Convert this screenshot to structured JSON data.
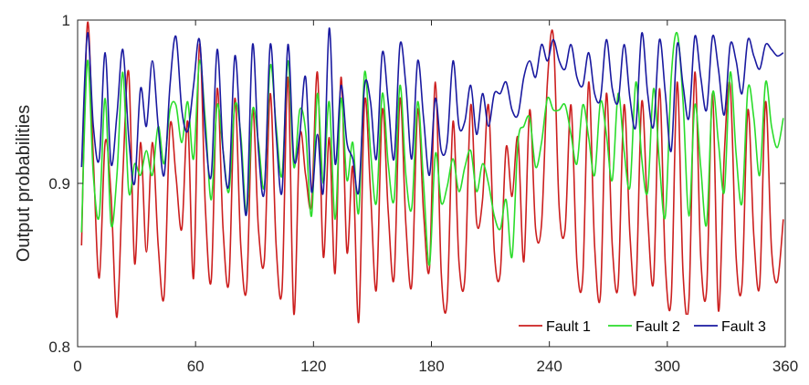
{
  "chart_data": {
    "type": "line",
    "title": "",
    "xlabel": "",
    "ylabel": "Output probabilities",
    "xlim": [
      0,
      360
    ],
    "ylim": [
      0.8,
      1
    ],
    "xticks": [
      0,
      60,
      120,
      180,
      240,
      300,
      360
    ],
    "xtick_labels": [
      "0",
      "60",
      "120",
      "180",
      "240",
      "300",
      "360"
    ],
    "yticks": [
      0.8,
      0.9,
      1
    ],
    "ytick_labels": [
      "0.8",
      "0.9",
      "1"
    ],
    "grid": false,
    "legend_position": "bottom-right",
    "series": [
      {
        "name": "Fault 1",
        "color": "#cc1f1f",
        "x": [
          2,
          5,
          8,
          11,
          14,
          17,
          20,
          23,
          26,
          29,
          32,
          35,
          38,
          41,
          44,
          47,
          50,
          53,
          56,
          59,
          62,
          65,
          68,
          71,
          74,
          77,
          80,
          83,
          86,
          89,
          92,
          95,
          98,
          101,
          104,
          107,
          110,
          113,
          116,
          119,
          122,
          125,
          128,
          131,
          134,
          137,
          140,
          143,
          146,
          149,
          152,
          155,
          158,
          161,
          164,
          167,
          170,
          173,
          176,
          179,
          182,
          185,
          188,
          191,
          194,
          197,
          200,
          203,
          206,
          209,
          212,
          215,
          218,
          221,
          224,
          227,
          230,
          233,
          236,
          239,
          242,
          245,
          248,
          251,
          254,
          257,
          260,
          263,
          266,
          269,
          272,
          275,
          278,
          281,
          284,
          287,
          290,
          293,
          296,
          299,
          302,
          305,
          308,
          311,
          314,
          317,
          320,
          323,
          326,
          329,
          332,
          335,
          338,
          341,
          344,
          347,
          350,
          353,
          356,
          359
        ],
        "values": [
          0.862,
          0.998,
          0.915,
          0.842,
          0.925,
          0.893,
          0.818,
          0.905,
          0.968,
          0.851,
          0.925,
          0.858,
          0.925,
          0.862,
          0.831,
          0.935,
          0.905,
          0.872,
          0.938,
          0.842,
          0.985,
          0.885,
          0.841,
          0.958,
          0.872,
          0.84,
          0.952,
          0.862,
          0.836,
          0.945,
          0.872,
          0.853,
          0.955,
          0.862,
          0.835,
          0.965,
          0.82,
          0.928,
          0.905,
          0.887,
          0.968,
          0.855,
          0.928,
          0.845,
          0.965,
          0.858,
          0.91,
          0.815,
          0.95,
          0.895,
          0.835,
          0.945,
          0.883,
          0.842,
          0.952,
          0.875,
          0.838,
          0.945,
          0.882,
          0.848,
          0.962,
          0.845,
          0.828,
          0.938,
          0.852,
          0.842,
          0.948,
          0.876,
          0.89,
          0.948,
          0.858,
          0.845,
          0.922,
          0.892,
          0.928,
          0.852,
          0.945,
          0.872,
          0.875,
          0.962,
          0.99,
          0.885,
          0.872,
          0.948,
          0.852,
          0.843,
          0.962,
          0.862,
          0.832,
          0.955,
          0.862,
          0.838,
          0.948,
          0.868,
          0.835,
          0.95,
          0.88,
          0.84,
          0.958,
          0.85,
          0.83,
          0.962,
          0.845,
          0.828,
          0.968,
          0.855,
          0.835,
          0.955,
          0.822,
          0.918,
          0.96,
          0.855,
          0.838,
          0.945,
          0.868,
          0.838,
          0.95,
          0.86,
          0.84,
          0.878
        ]
      },
      {
        "name": "Fault 2",
        "color": "#2bdc2b",
        "x": [
          2,
          5,
          8,
          11,
          14,
          17,
          20,
          23,
          26,
          29,
          32,
          35,
          38,
          41,
          44,
          47,
          50,
          53,
          56,
          59,
          62,
          65,
          68,
          71,
          74,
          77,
          80,
          83,
          86,
          89,
          92,
          95,
          98,
          101,
          104,
          107,
          110,
          113,
          116,
          119,
          122,
          125,
          128,
          131,
          134,
          137,
          140,
          143,
          146,
          149,
          152,
          155,
          158,
          161,
          164,
          167,
          170,
          173,
          176,
          179,
          182,
          185,
          188,
          191,
          194,
          197,
          200,
          203,
          206,
          209,
          212,
          215,
          218,
          221,
          224,
          227,
          230,
          233,
          236,
          239,
          242,
          245,
          248,
          251,
          254,
          257,
          260,
          263,
          266,
          269,
          272,
          275,
          278,
          281,
          284,
          287,
          290,
          293,
          296,
          299,
          302,
          305,
          308,
          311,
          314,
          317,
          320,
          323,
          326,
          329,
          332,
          335,
          338,
          341,
          344,
          347,
          350,
          353,
          356,
          359
        ],
        "values": [
          0.87,
          0.975,
          0.905,
          0.88,
          0.952,
          0.875,
          0.905,
          0.968,
          0.895,
          0.912,
          0.905,
          0.92,
          0.905,
          0.935,
          0.912,
          0.945,
          0.948,
          0.925,
          0.95,
          0.915,
          0.975,
          0.938,
          0.89,
          0.948,
          0.92,
          0.895,
          0.948,
          0.93,
          0.882,
          0.945,
          0.925,
          0.898,
          0.972,
          0.935,
          0.905,
          0.975,
          0.91,
          0.945,
          0.932,
          0.88,
          0.955,
          0.9,
          0.95,
          0.878,
          0.952,
          0.902,
          0.925,
          0.882,
          0.968,
          0.92,
          0.888,
          0.955,
          0.912,
          0.89,
          0.96,
          0.905,
          0.885,
          0.95,
          0.9,
          0.85,
          0.918,
          0.888,
          0.898,
          0.915,
          0.895,
          0.91,
          0.92,
          0.895,
          0.912,
          0.9,
          0.88,
          0.872,
          0.89,
          0.855,
          0.925,
          0.935,
          0.94,
          0.91,
          0.925,
          0.952,
          0.945,
          0.945,
          0.948,
          0.93,
          0.912,
          0.948,
          0.928,
          0.905,
          0.95,
          0.93,
          0.902,
          0.955,
          0.92,
          0.898,
          0.962,
          0.915,
          0.895,
          0.958,
          0.912,
          0.88,
          0.965,
          0.992,
          0.95,
          0.88,
          0.948,
          0.91,
          0.875,
          0.955,
          0.925,
          0.895,
          0.968,
          0.918,
          0.888,
          0.958,
          0.94,
          0.905,
          0.962,
          0.935,
          0.922,
          0.94
        ]
      },
      {
        "name": "Fault 3",
        "color": "#1a1aa0",
        "x": [
          2,
          5,
          8,
          11,
          14,
          17,
          20,
          23,
          26,
          29,
          32,
          35,
          38,
          41,
          44,
          47,
          50,
          53,
          56,
          59,
          62,
          65,
          68,
          71,
          74,
          77,
          80,
          83,
          86,
          89,
          92,
          95,
          98,
          101,
          104,
          107,
          110,
          113,
          116,
          119,
          122,
          125,
          128,
          131,
          134,
          137,
          140,
          143,
          146,
          149,
          152,
          155,
          158,
          161,
          164,
          167,
          170,
          173,
          176,
          179,
          182,
          185,
          188,
          191,
          194,
          197,
          200,
          203,
          206,
          209,
          212,
          215,
          218,
          221,
          224,
          227,
          230,
          233,
          236,
          239,
          242,
          245,
          248,
          251,
          254,
          257,
          260,
          263,
          266,
          269,
          272,
          275,
          278,
          281,
          284,
          287,
          290,
          293,
          296,
          299,
          302,
          305,
          308,
          311,
          314,
          317,
          320,
          323,
          326,
          329,
          332,
          335,
          338,
          341,
          344,
          347,
          350,
          353,
          356,
          359
        ],
        "values": [
          0.91,
          0.992,
          0.935,
          0.915,
          0.98,
          0.912,
          0.942,
          0.982,
          0.928,
          0.9,
          0.958,
          0.935,
          0.975,
          0.935,
          0.905,
          0.96,
          0.99,
          0.945,
          0.932,
          0.96,
          0.988,
          0.93,
          0.905,
          0.982,
          0.92,
          0.9,
          0.978,
          0.925,
          0.882,
          0.985,
          0.92,
          0.895,
          0.985,
          0.93,
          0.895,
          0.985,
          0.915,
          0.93,
          0.965,
          0.895,
          0.93,
          0.895,
          0.995,
          0.912,
          0.96,
          0.925,
          0.915,
          0.895,
          0.96,
          0.95,
          0.915,
          0.98,
          0.95,
          0.915,
          0.985,
          0.96,
          0.915,
          0.975,
          0.94,
          0.905,
          0.952,
          0.92,
          0.925,
          0.975,
          0.935,
          0.938,
          0.96,
          0.93,
          0.955,
          0.935,
          0.955,
          0.955,
          0.962,
          0.945,
          0.942,
          0.965,
          0.975,
          0.965,
          0.985,
          0.975,
          0.988,
          0.975,
          0.97,
          0.985,
          0.965,
          0.96,
          0.98,
          0.955,
          0.952,
          0.988,
          0.958,
          0.95,
          0.985,
          0.952,
          0.935,
          0.992,
          0.955,
          0.935,
          0.988,
          0.955,
          0.92,
          0.985,
          0.96,
          0.94,
          0.99,
          0.965,
          0.945,
          0.99,
          0.97,
          0.942,
          0.985,
          0.975,
          0.955,
          0.988,
          0.978,
          0.97,
          0.985,
          0.982,
          0.978,
          0.98
        ]
      }
    ]
  }
}
